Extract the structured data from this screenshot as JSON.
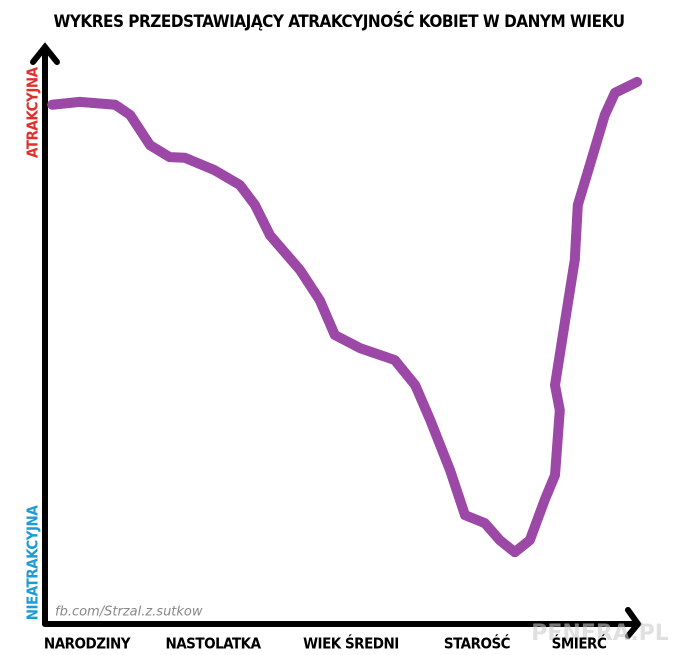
{
  "chart_data": {
    "type": "line",
    "title": "WYKRES PRZEDSTAWIAJĄCY ATRAKCYJNOŚĆ KOBIET W DANYM WIEKU",
    "xlim": [
      0,
      100
    ],
    "ylim": [
      0,
      100
    ],
    "xticks": [
      {
        "value": 7,
        "label": "NARODZINY"
      },
      {
        "value": 28,
        "label": "NASTOLATKA"
      },
      {
        "value": 51,
        "label": "WIEK ŚREDNI"
      },
      {
        "value": 72,
        "label": "STAROŚĆ"
      },
      {
        "value": 89,
        "label": "ŚMIERĆ"
      }
    ],
    "yticks": [
      {
        "value": 89,
        "label": "ATRAKCYJNA"
      },
      {
        "value": 10,
        "label": "NIEATRAKCYJNA"
      }
    ],
    "ytick_colors": [
      "#e0302c",
      "#1e9ad6"
    ],
    "grid": false,
    "series": [
      {
        "color": "#9b48a6",
        "x": [
          1.2,
          5.8,
          11.7,
          14.2,
          17.5,
          20.8,
          23.3,
          28.3,
          32.5,
          35,
          37.5,
          42.5,
          45.8,
          48.3,
          52.5,
          58.3,
          61.7,
          64.2,
          67.5,
          70,
          73.3,
          75.8,
          78.3,
          80.8,
          83.3,
          85,
          85.8,
          85,
          86.7,
          88.3,
          88.8,
          90.8,
          93.3,
          95,
          98.7
        ],
        "values": [
          90.4,
          90.9,
          90.4,
          88.6,
          83.3,
          81.2,
          81.1,
          78.9,
          76.3,
          72.8,
          67.5,
          61.4,
          56.1,
          50,
          47.7,
          45.6,
          41.2,
          35.1,
          26.3,
          18.4,
          17,
          14,
          11.9,
          14,
          21.1,
          25.4,
          36.8,
          41.2,
          52.6,
          63.2,
          72.8,
          79.8,
          88.6,
          92.5,
          94.4
        ]
      }
    ],
    "watermarks": [
      "fb.com/Strzal.z.sutkow",
      "PENERA.PL"
    ]
  }
}
